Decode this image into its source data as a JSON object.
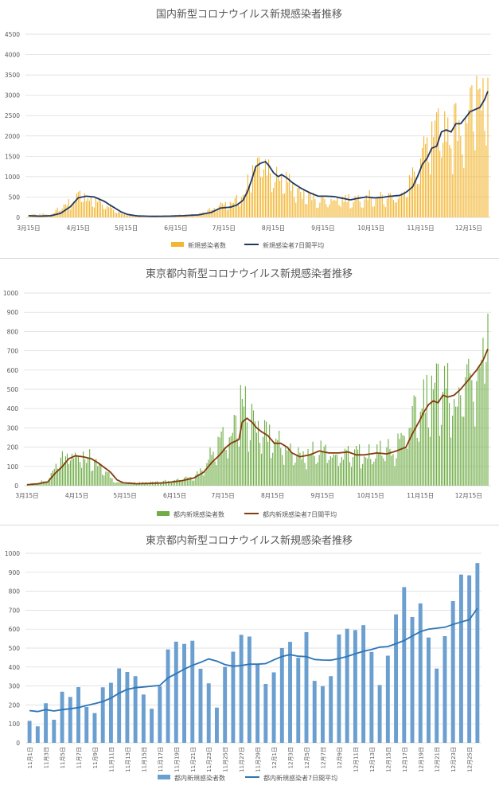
{
  "chart_data": [
    {
      "type": "bar+line",
      "title": "国内新型コロナウイルス新規感染者推移",
      "ylim": [
        0,
        4500
      ],
      "yticks": [
        0,
        500,
        1000,
        1500,
        2000,
        2500,
        3000,
        3500,
        4000,
        4500
      ],
      "x_tick_labels": [
        "3月15日",
        "4月15日",
        "5月15日",
        "6月15日",
        "7月15日",
        "8月15日",
        "9月15日",
        "10月15日",
        "11月15日",
        "12月15日"
      ],
      "x_start": "3月15日",
      "x_days": 287,
      "grid": true,
      "legend_position": "bottom",
      "colors": {
        "bar": "#F2B632",
        "line": "#203864"
      },
      "series": [
        {
          "name": "新規感染者数",
          "kind": "bar"
        },
        {
          "name": "新規感染者7日間平均",
          "kind": "line",
          "keypoints": [
            [
              0,
              40
            ],
            [
              7,
              30
            ],
            [
              14,
              40
            ],
            [
              20,
              100
            ],
            [
              26,
              260
            ],
            [
              31,
              480
            ],
            [
              36,
              520
            ],
            [
              41,
              500
            ],
            [
              47,
              400
            ],
            [
              53,
              250
            ],
            [
              58,
              130
            ],
            [
              62,
              70
            ],
            [
              68,
              35
            ],
            [
              78,
              25
            ],
            [
              88,
              30
            ],
            [
              96,
              40
            ],
            [
              106,
              60
            ],
            [
              114,
              120
            ],
            [
              120,
              230
            ],
            [
              126,
              250
            ],
            [
              130,
              300
            ],
            [
              134,
              420
            ],
            [
              137,
              650
            ],
            [
              140,
              1000
            ],
            [
              142,
              1250
            ],
            [
              145,
              1330
            ],
            [
              148,
              1370
            ],
            [
              150,
              1280
            ],
            [
              153,
              1100
            ],
            [
              156,
              1000
            ],
            [
              158,
              1050
            ],
            [
              161,
              980
            ],
            [
              165,
              850
            ],
            [
              170,
              720
            ],
            [
              176,
              600
            ],
            [
              181,
              520
            ],
            [
              186,
              520
            ],
            [
              191,
              510
            ],
            [
              196,
              470
            ],
            [
              201,
              430
            ],
            [
              206,
              470
            ],
            [
              211,
              500
            ],
            [
              216,
              480
            ],
            [
              221,
              490
            ],
            [
              226,
              520
            ],
            [
              232,
              540
            ],
            [
              236,
              620
            ],
            [
              240,
              750
            ],
            [
              243,
              1000
            ],
            [
              246,
              1300
            ],
            [
              249,
              1450
            ],
            [
              252,
              1700
            ],
            [
              255,
              1750
            ],
            [
              258,
              2100
            ],
            [
              261,
              2150
            ],
            [
              264,
              2100
            ],
            [
              267,
              2300
            ],
            [
              270,
              2300
            ],
            [
              273,
              2450
            ],
            [
              276,
              2600
            ],
            [
              279,
              2650
            ],
            [
              282,
              2700
            ],
            [
              285,
              2900
            ],
            [
              287,
              3100
            ]
          ]
        }
      ],
      "bar_profile": [
        [
          0,
          60
        ],
        [
          14,
          90
        ],
        [
          20,
          250
        ],
        [
          26,
          400
        ],
        [
          31,
          560
        ],
        [
          36,
          520
        ],
        [
          41,
          450
        ],
        [
          47,
          350
        ],
        [
          53,
          200
        ],
        [
          58,
          100
        ],
        [
          68,
          40
        ],
        [
          88,
          50
        ],
        [
          106,
          80
        ],
        [
          114,
          200
        ],
        [
          120,
          300
        ],
        [
          126,
          320
        ],
        [
          134,
          600
        ],
        [
          138,
          1100
        ],
        [
          142,
          1400
        ],
        [
          147,
          1350
        ],
        [
          153,
          1100
        ],
        [
          160,
          950
        ],
        [
          165,
          800
        ],
        [
          170,
          600
        ],
        [
          178,
          500
        ],
        [
          186,
          420
        ],
        [
          191,
          500
        ],
        [
          201,
          450
        ],
        [
          211,
          550
        ],
        [
          221,
          500
        ],
        [
          230,
          550
        ],
        [
          237,
          800
        ],
        [
          242,
          1200
        ],
        [
          246,
          1500
        ],
        [
          250,
          1900
        ],
        [
          254,
          2000
        ],
        [
          258,
          2400
        ],
        [
          264,
          2300
        ],
        [
          270,
          2500
        ],
        [
          276,
          2800
        ],
        [
          280,
          3000
        ],
        [
          284,
          3300
        ],
        [
          287,
          3880
        ]
      ]
    },
    {
      "type": "bar+line",
      "title": "東京都内新型コロナウイルス新規感染者推移",
      "ylim": [
        0,
        1000
      ],
      "yticks": [
        0,
        100,
        200,
        300,
        400,
        500,
        600,
        700,
        800,
        900,
        1000
      ],
      "x_tick_labels": [
        "3月15日",
        "4月15日",
        "5月15日",
        "6月15日",
        "7月15日",
        "8月15日",
        "9月15日",
        "10月15日",
        "11月15日",
        "12月15日"
      ],
      "x_start": "3月15日",
      "x_days": 287,
      "grid": true,
      "legend_position": "bottom",
      "colors": {
        "bar": "#70AD47",
        "line": "#843C0C"
      },
      "series": [
        {
          "name": "都内新規感染者数",
          "kind": "bar"
        },
        {
          "name": "都内新規感染者7日間平均",
          "kind": "line",
          "keypoints": [
            [
              0,
              5
            ],
            [
              7,
              10
            ],
            [
              13,
              20
            ],
            [
              17,
              60
            ],
            [
              22,
              100
            ],
            [
              26,
              140
            ],
            [
              30,
              155
            ],
            [
              35,
              150
            ],
            [
              40,
              140
            ],
            [
              44,
              120
            ],
            [
              48,
              95
            ],
            [
              52,
              70
            ],
            [
              56,
              30
            ],
            [
              60,
              15
            ],
            [
              68,
              10
            ],
            [
              78,
              12
            ],
            [
              86,
              15
            ],
            [
              96,
              25
            ],
            [
              104,
              40
            ],
            [
              110,
              70
            ],
            [
              115,
              120
            ],
            [
              120,
              160
            ],
            [
              124,
              200
            ],
            [
              127,
              220
            ],
            [
              132,
              240
            ],
            [
              134,
              330
            ],
            [
              137,
              350
            ],
            [
              140,
              330
            ],
            [
              143,
              300
            ],
            [
              146,
              280
            ],
            [
              150,
              260
            ],
            [
              154,
              220
            ],
            [
              158,
              220
            ],
            [
              162,
              200
            ],
            [
              165,
              170
            ],
            [
              170,
              150
            ],
            [
              176,
              160
            ],
            [
              182,
              180
            ],
            [
              188,
              170
            ],
            [
              194,
              170
            ],
            [
              200,
              175
            ],
            [
              205,
              160
            ],
            [
              210,
              160
            ],
            [
              218,
              170
            ],
            [
              224,
              165
            ],
            [
              230,
              180
            ],
            [
              236,
              200
            ],
            [
              240,
              270
            ],
            [
              244,
              330
            ],
            [
              247,
              380
            ],
            [
              250,
              420
            ],
            [
              253,
              440
            ],
            [
              256,
              430
            ],
            [
              259,
              470
            ],
            [
              262,
              460
            ],
            [
              266,
              470
            ],
            [
              270,
              500
            ],
            [
              273,
              530
            ],
            [
              276,
              560
            ],
            [
              280,
              600
            ],
            [
              284,
              650
            ],
            [
              287,
              710
            ]
          ]
        }
      ],
      "bar_profile": [
        [
          0,
          5
        ],
        [
          13,
          30
        ],
        [
          17,
          100
        ],
        [
          22,
          150
        ],
        [
          26,
          180
        ],
        [
          30,
          190
        ],
        [
          35,
          160
        ],
        [
          40,
          150
        ],
        [
          44,
          120
        ],
        [
          48,
          80
        ],
        [
          52,
          50
        ],
        [
          56,
          20
        ],
        [
          68,
          15
        ],
        [
          88,
          25
        ],
        [
          104,
          50
        ],
        [
          110,
          100
        ],
        [
          115,
          200
        ],
        [
          120,
          250
        ],
        [
          124,
          260
        ],
        [
          127,
          300
        ],
        [
          131,
          430
        ],
        [
          134,
          460
        ],
        [
          138,
          380
        ],
        [
          142,
          340
        ],
        [
          146,
          300
        ],
        [
          150,
          280
        ],
        [
          156,
          240
        ],
        [
          162,
          200
        ],
        [
          170,
          160
        ],
        [
          182,
          200
        ],
        [
          190,
          170
        ],
        [
          200,
          180
        ],
        [
          210,
          170
        ],
        [
          222,
          190
        ],
        [
          230,
          200
        ],
        [
          236,
          300
        ],
        [
          240,
          380
        ],
        [
          244,
          450
        ],
        [
          248,
          500
        ],
        [
          252,
          480
        ],
        [
          258,
          560
        ],
        [
          264,
          520
        ],
        [
          270,
          560
        ],
        [
          276,
          620
        ],
        [
          280,
          700
        ],
        [
          284,
          780
        ],
        [
          287,
          950
        ]
      ]
    },
    {
      "type": "bar+line",
      "title": "東京都内新型コロナウイルス新規感染者推移",
      "ylim": [
        0,
        1000
      ],
      "yticks": [
        0,
        100,
        200,
        300,
        400,
        500,
        600,
        700,
        800,
        900,
        1000
      ],
      "grid": true,
      "legend_position": "bottom",
      "colors": {
        "bar": "#6A9FCF",
        "line": "#2E75B6"
      },
      "categories": [
        "11月1日",
        "11月2日",
        "11月3日",
        "11月4日",
        "11月5日",
        "11月6日",
        "11月7日",
        "11月8日",
        "11月9日",
        "11月10日",
        "11月11日",
        "11月12日",
        "11月13日",
        "11月14日",
        "11月15日",
        "11月16日",
        "11月17日",
        "11月18日",
        "11月19日",
        "11月20日",
        "11月21日",
        "11月22日",
        "11月23日",
        "11月24日",
        "11月25日",
        "11月26日",
        "11月27日",
        "11月28日",
        "11月29日",
        "11月30日",
        "12月1日",
        "12月2日",
        "12月3日",
        "12月4日",
        "12月5日",
        "12月6日",
        "12月7日",
        "12月8日",
        "12月9日",
        "12月10日",
        "12月11日",
        "12月12日",
        "12月13日",
        "12月14日",
        "12月15日",
        "12月16日",
        "12月17日",
        "12月18日",
        "12月19日",
        "12月20日",
        "12月21日",
        "12月22日",
        "12月23日",
        "12月24日",
        "12月25日",
        "12月26日"
      ],
      "x_tick_labels": [
        "11月1日",
        "11月3日",
        "11月5日",
        "11月7日",
        "11月9日",
        "11月11日",
        "11月13日",
        "11月15日",
        "11月17日",
        "11月19日",
        "11月21日",
        "11月23日",
        "11月25日",
        "11月27日",
        "11月29日",
        "12月1日",
        "12月3日",
        "12月5日",
        "12月7日",
        "12月9日",
        "12月11日",
        "12月13日",
        "12月15日",
        "12月17日",
        "12月19日",
        "12月21日",
        "12月23日",
        "12月25日"
      ],
      "series": [
        {
          "name": "都内新規感染者数",
          "kind": "bar",
          "values": [
            116,
            87,
            209,
            122,
            270,
            242,
            294,
            189,
            157,
            293,
            317,
            393,
            374,
            352,
            255,
            180,
            298,
            493,
            534,
            522,
            539,
            391,
            314,
            186,
            401,
            481,
            570,
            561,
            418,
            311,
            372,
            500,
            533,
            449,
            584,
            327,
            299,
            352,
            572,
            602,
            595,
            621,
            480,
            305,
            460,
            678,
            822,
            664,
            736,
            556,
            392,
            563,
            748,
            888,
            884,
            949
          ]
        },
        {
          "name": "都内新規感染者7日間平均",
          "kind": "line",
          "values": [
            170,
            165,
            175,
            168,
            175,
            180,
            186,
            197,
            207,
            218,
            236,
            262,
            282,
            291,
            295,
            299,
            303,
            343,
            365,
            389,
            409,
            425,
            443,
            431,
            413,
            404,
            408,
            415,
            415,
            418,
            438,
            456,
            465,
            457,
            455,
            440,
            437,
            436,
            445,
            456,
            470,
            483,
            493,
            505,
            508,
            523,
            540,
            564,
            587,
            600,
            605,
            610,
            625,
            638,
            650,
            710
          ]
        }
      ]
    }
  ]
}
